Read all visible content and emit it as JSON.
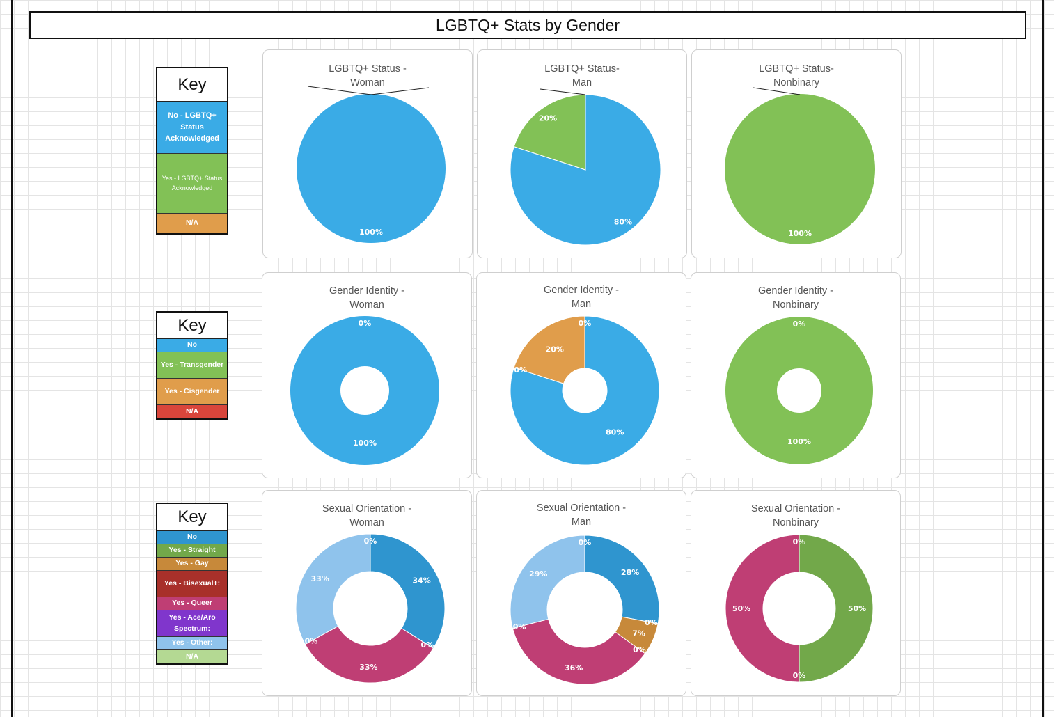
{
  "title": "LGBTQ+ Stats by Gender",
  "keys": [
    {
      "title": "Key",
      "items": [
        {
          "label": "No - LGBTQ+ Status Acknowledged",
          "color": "#3AABE6"
        },
        {
          "label": "Yes - LGBTQ+ Status Acknowledged",
          "color": "#82C156"
        },
        {
          "label": "N/A",
          "color": "#E09D4B"
        }
      ]
    },
    {
      "title": "Key",
      "items": [
        {
          "label": "No",
          "color": "#3AABE6"
        },
        {
          "label": "Yes - Transgender",
          "color": "#82C156"
        },
        {
          "label": "Yes - Cisgender",
          "color": "#E09D4B"
        },
        {
          "label": "N/A",
          "color": "#D9453B"
        }
      ]
    },
    {
      "title": "Key",
      "items": [
        {
          "label": "No",
          "color": "#2F95CF"
        },
        {
          "label": "Yes - Straight",
          "color": "#72A84A"
        },
        {
          "label": "Yes - Gay",
          "color": "#C7893A"
        },
        {
          "label": "Yes - Bisexual+:",
          "color": "#A8302A"
        },
        {
          "label": "Yes - Queer",
          "color": "#BF3E74"
        },
        {
          "label": "Yes - Ace/Aro Spectrum:",
          "color": "#8036CC"
        },
        {
          "label": "Yes - Other:",
          "color": "#8FC3EC"
        },
        {
          "label": "N/A",
          "color": "#B4D993"
        }
      ]
    }
  ],
  "chart_data": [
    {
      "type": "pie",
      "title_lines": [
        "LGBTQ+ Status -",
        "Woman"
      ],
      "series": [
        {
          "value": 100,
          "label": "100%",
          "color": "#3AABE6"
        }
      ]
    },
    {
      "type": "pie",
      "title_lines": [
        "LGBTQ+ Status-",
        "Man"
      ],
      "series": [
        {
          "value": 80,
          "label": "80%",
          "color": "#3AABE6"
        },
        {
          "value": 20,
          "label": "20%",
          "color": "#82C156"
        }
      ]
    },
    {
      "type": "pie",
      "title_lines": [
        "LGBTQ+ Status-",
        "Nonbinary"
      ],
      "series": [
        {
          "value": 100,
          "label": "100%",
          "color": "#82C156"
        }
      ]
    },
    {
      "type": "pie",
      "donut": true,
      "title_lines": [
        "Gender Identity -",
        "Woman"
      ],
      "series": [
        {
          "value": 100,
          "label": "100%",
          "color": "#3AABE6"
        },
        {
          "value": 0,
          "label": "0%",
          "color": "#82C156"
        }
      ]
    },
    {
      "type": "pie",
      "donut": true,
      "title_lines": [
        "Gender Identity -",
        "Man"
      ],
      "series": [
        {
          "value": 80,
          "label": "80%",
          "color": "#3AABE6"
        },
        {
          "value": 0,
          "label": "0%",
          "color": "#82C156"
        },
        {
          "value": 20,
          "label": "20%",
          "color": "#E09D4B"
        },
        {
          "value": 0,
          "label": "0%",
          "color": "#D9453B"
        }
      ]
    },
    {
      "type": "pie",
      "donut": true,
      "title_lines": [
        "Gender Identity -",
        "Nonbinary"
      ],
      "series": [
        {
          "value": 100,
          "label": "100%",
          "color": "#82C156"
        },
        {
          "value": 0,
          "label": "0%",
          "color": "#3AABE6"
        }
      ]
    },
    {
      "type": "pie",
      "donut": true,
      "title_lines": [
        "Sexual Orientation -",
        "Woman"
      ],
      "series": [
        {
          "value": 34,
          "label": "34%",
          "color": "#2F95CF"
        },
        {
          "value": 0,
          "label": "0%",
          "color": "#72A84A"
        },
        {
          "value": 33,
          "label": "33%",
          "color": "#BF3E74"
        },
        {
          "value": 0,
          "label": "0%",
          "color": "#8036CC"
        },
        {
          "value": 33,
          "label": "33%",
          "color": "#8FC3EC"
        },
        {
          "value": 0,
          "label": "0%",
          "color": "#B4D993"
        }
      ]
    },
    {
      "type": "pie",
      "donut": true,
      "title_lines": [
        "Sexual Orientation -",
        "Man"
      ],
      "series": [
        {
          "value": 28,
          "label": "28%",
          "color": "#2F95CF"
        },
        {
          "value": 0,
          "label": "0%",
          "color": "#72A84A"
        },
        {
          "value": 7,
          "label": "7%",
          "color": "#C7893A"
        },
        {
          "value": 0,
          "label": "0%",
          "color": "#A8302A"
        },
        {
          "value": 36,
          "label": "36%",
          "color": "#BF3E74"
        },
        {
          "value": 0,
          "label": "0%",
          "color": "#8036CC"
        },
        {
          "value": 29,
          "label": "29%",
          "color": "#8FC3EC"
        },
        {
          "value": 0,
          "label": "0%",
          "color": "#B4D993"
        }
      ]
    },
    {
      "type": "pie",
      "donut": true,
      "title_lines": [
        "Sexual Orientation -",
        "Nonbinary"
      ],
      "series": [
        {
          "value": 50,
          "label": "50%",
          "color": "#72A84A"
        },
        {
          "value": 0,
          "label": "0%",
          "color": "#C7893A"
        },
        {
          "value": 50,
          "label": "50%",
          "color": "#BF3E74"
        },
        {
          "value": 0,
          "label": "0%",
          "color": "#8036CC"
        }
      ]
    }
  ]
}
